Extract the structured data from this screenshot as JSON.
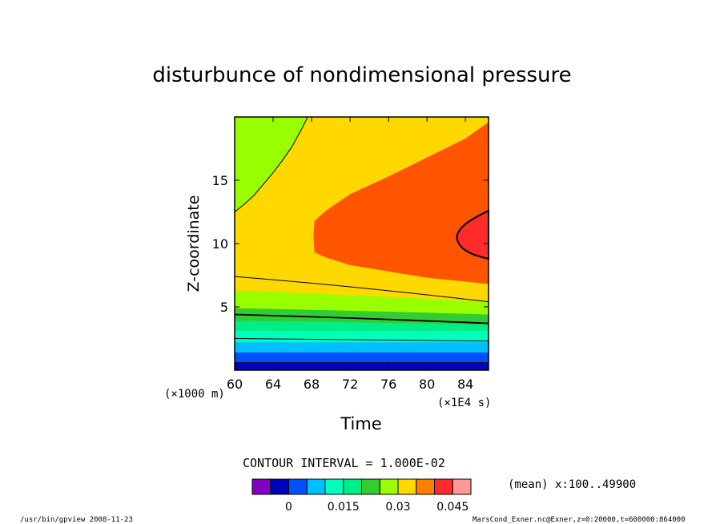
{
  "chart_data": {
    "type": "heatmap",
    "title": "disturbunce of nondimensional pressure",
    "xlabel": "Time",
    "ylabel": "Z-coordinate",
    "x_unit": "(×1E4 s)",
    "y_unit": "(×1000 m)",
    "xlim": [
      60,
      86.4
    ],
    "ylim": [
      0,
      20
    ],
    "xticks": [
      "60",
      "64",
      "68",
      "72",
      "76",
      "80",
      "84"
    ],
    "yticks": [
      "5",
      "10",
      "15"
    ],
    "contour_interval_label": "CONTOUR INTERVAL = 1.000E-02",
    "mean_label": "(mean) x:100..49900",
    "colorbar": {
      "colors": [
        "#7f00bf",
        "#0000bf",
        "#0050ff",
        "#00bfff",
        "#00ffbf",
        "#00ee88",
        "#33cc33",
        "#99ff00",
        "#ffd800",
        "#ff7f00",
        "#ff2a2a",
        "#ff9999"
      ],
      "tick_labels": [
        "0",
        "0.015",
        "0.03",
        "0.045"
      ]
    },
    "bands": [
      {
        "color": "#0000bf",
        "z_top": 0.6
      },
      {
        "color": "#0050ff",
        "z_top": 1.4
      },
      {
        "color": "#00bfff",
        "z_top": 2.2
      },
      {
        "color": "#00ffbf",
        "z_top": 3.1
      },
      {
        "color": "#00ee88",
        "z_top_start": 3.9,
        "z_top_end": 3.6
      },
      {
        "color": "#33cc33",
        "z_top_start": 4.9,
        "z_top_end": 4.4
      },
      {
        "color": "#99ff00",
        "z_top_start": 6.3,
        "z_top_end": 5.4
      }
    ],
    "regions": {
      "green_upper_left": {
        "color": "#99ff00"
      },
      "yellow": {
        "color": "#ffd800"
      },
      "orange": {
        "color": "#ff5500"
      },
      "red": {
        "color": "#ff2a2a"
      }
    }
  },
  "footer": {
    "left": "/usr/bin/gpview   2008-11-23",
    "right": "MarsCond_Exner.nc@Exner,z=0:20000,t=600000:864000"
  }
}
